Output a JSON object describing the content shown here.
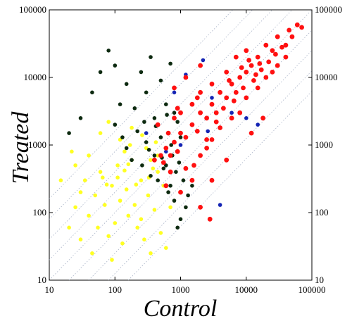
{
  "chart_data": {
    "type": "scatter",
    "xlabel": "Control",
    "ylabel": "Treated",
    "xscale": "log",
    "yscale": "log",
    "xlim": [
      10,
      100000
    ],
    "ylim": [
      10,
      100000
    ],
    "x_ticks": [
      "10",
      "100",
      "1000",
      "10000",
      "100000"
    ],
    "y_ticks": [
      "10",
      "100",
      "1000",
      "10000",
      "100000"
    ],
    "right_y_ticks": [
      "10",
      "100",
      "1000",
      "10000",
      "100000"
    ],
    "grid": false,
    "reference_lines": {
      "style": "dotted diagonal",
      "fold_ratios": [
        0.0625,
        0.125,
        0.25,
        0.5,
        2,
        4,
        8,
        16
      ],
      "color": "#aab4c8"
    },
    "colors": {
      "red": "#ff1010",
      "yellow": "#ffff22",
      "black": "#0d2a10",
      "blue": "#1424b4"
    },
    "series": [
      {
        "color": "#ffff22",
        "description_points": "low-expression cluster",
        "points": [
          [
            20,
            60
          ],
          [
            25,
            120
          ],
          [
            30,
            40
          ],
          [
            35,
            300
          ],
          [
            40,
            90
          ],
          [
            45,
            25
          ],
          [
            50,
            180
          ],
          [
            55,
            60
          ],
          [
            60,
            400
          ],
          [
            70,
            130
          ],
          [
            80,
            45
          ],
          [
            90,
            250
          ],
          [
            100,
            70
          ],
          [
            110,
            500
          ],
          [
            120,
            150
          ],
          [
            130,
            35
          ],
          [
            140,
            800
          ],
          [
            150,
            220
          ],
          [
            160,
            90
          ],
          [
            180,
            600
          ],
          [
            200,
            130
          ],
          [
            220,
            60
          ],
          [
            250,
            300
          ],
          [
            280,
            40
          ],
          [
            300,
            900
          ],
          [
            320,
            180
          ],
          [
            350,
            25
          ],
          [
            380,
            450
          ],
          [
            400,
            110
          ],
          [
            450,
            700
          ],
          [
            500,
            50
          ],
          [
            550,
            250
          ],
          [
            600,
            30
          ],
          [
            40,
            700
          ],
          [
            60,
            1500
          ],
          [
            80,
            2200
          ],
          [
            120,
            1200
          ],
          [
            180,
            1800
          ],
          [
            30,
            200
          ],
          [
            250,
            80
          ],
          [
            350,
            600
          ],
          [
            90,
            20
          ],
          [
            15,
            300
          ],
          [
            22,
            800
          ],
          [
            65,
            330
          ],
          [
            140,
            420
          ],
          [
            210,
            260
          ],
          [
            330,
            330
          ],
          [
            450,
            400
          ],
          [
            700,
            120
          ],
          [
            25,
            500
          ],
          [
            170,
            1000
          ],
          [
            260,
            1400
          ],
          [
            420,
            1100
          ],
          [
            600,
            900
          ],
          [
            75,
            260
          ],
          [
            110,
            330
          ],
          [
            160,
            520
          ]
        ]
      },
      {
        "color": "#0d2a10",
        "points": [
          [
            20,
            1500
          ],
          [
            30,
            2500
          ],
          [
            45,
            6000
          ],
          [
            60,
            12000
          ],
          [
            80,
            25000
          ],
          [
            100,
            15000
          ],
          [
            120,
            4000
          ],
          [
            150,
            8000
          ],
          [
            200,
            3500
          ],
          [
            250,
            12000
          ],
          [
            300,
            6000
          ],
          [
            350,
            20000
          ],
          [
            400,
            2500
          ],
          [
            500,
            9000
          ],
          [
            600,
            4000
          ],
          [
            700,
            16000
          ],
          [
            800,
            3000
          ],
          [
            150,
            900
          ],
          [
            220,
            1600
          ],
          [
            300,
            1100
          ],
          [
            400,
            700
          ],
          [
            500,
            1300
          ],
          [
            600,
            500
          ],
          [
            700,
            250
          ],
          [
            800,
            150
          ],
          [
            900,
            60
          ],
          [
            1000,
            80
          ],
          [
            1200,
            120
          ],
          [
            350,
            350
          ],
          [
            450,
            300
          ],
          [
            550,
            450
          ],
          [
            650,
            200
          ],
          [
            750,
            700
          ],
          [
            850,
            400
          ],
          [
            260,
            500
          ],
          [
            180,
            600
          ],
          [
            100,
            2000
          ],
          [
            130,
            1300
          ],
          [
            280,
            2200
          ],
          [
            330,
            850
          ],
          [
            420,
            1900
          ],
          [
            520,
            650
          ],
          [
            620,
            2800
          ],
          [
            720,
            1000
          ],
          [
            950,
            550
          ],
          [
            1100,
            300
          ],
          [
            1300,
            180
          ],
          [
            900,
            2200
          ],
          [
            1000,
            1300
          ],
          [
            1500,
            250
          ]
        ]
      },
      {
        "color": "#1424b4",
        "points": [
          [
            300,
            1500
          ],
          [
            600,
            800
          ],
          [
            1200,
            11000
          ],
          [
            2200,
            18000
          ],
          [
            3000,
            5000
          ],
          [
            4000,
            130
          ],
          [
            6000,
            3000
          ],
          [
            10000,
            2500
          ],
          [
            15000,
            2000
          ],
          [
            1000,
            1000
          ],
          [
            2600,
            1600
          ],
          [
            800,
            6000
          ]
        ]
      },
      {
        "color": "#ff1010",
        "description_points": "high-expression main diagonal band",
        "points": [
          [
            60000,
            60000
          ],
          [
            45000,
            50000
          ],
          [
            40000,
            30000
          ],
          [
            30000,
            40000
          ],
          [
            25000,
            25000
          ],
          [
            20000,
            30000
          ],
          [
            15000,
            20000
          ],
          [
            12000,
            15000
          ],
          [
            10000,
            12000
          ],
          [
            8000,
            10000
          ],
          [
            7000,
            6000
          ],
          [
            6000,
            8000
          ],
          [
            5000,
            5000
          ],
          [
            4000,
            6000
          ],
          [
            3500,
            3000
          ],
          [
            3000,
            4000
          ],
          [
            2500,
            2500
          ],
          [
            2000,
            3000
          ],
          [
            1800,
            1600
          ],
          [
            1500,
            2000
          ],
          [
            1200,
            1300
          ],
          [
            1000,
            1500
          ],
          [
            900,
            800
          ],
          [
            800,
            1100
          ],
          [
            700,
            700
          ],
          [
            600,
            900
          ],
          [
            550,
            550
          ],
          [
            500,
            700
          ],
          [
            20000,
            10000
          ],
          [
            30000,
            15000
          ],
          [
            10000,
            5000
          ],
          [
            8000,
            3000
          ],
          [
            15000,
            7000
          ],
          [
            6000,
            2500
          ],
          [
            4000,
            1800
          ],
          [
            3000,
            1200
          ],
          [
            2500,
            900
          ],
          [
            2000,
            700
          ],
          [
            1600,
            500
          ],
          [
            1200,
            450
          ],
          [
            5000,
            12000
          ],
          [
            3000,
            8000
          ],
          [
            2000,
            6000
          ],
          [
            1500,
            4000
          ],
          [
            1000,
            3000
          ],
          [
            800,
            2500
          ],
          [
            7000,
            20000
          ],
          [
            10000,
            25000
          ],
          [
            1500,
            300
          ],
          [
            3000,
            300
          ],
          [
            5000,
            600
          ],
          [
            12000,
            1500
          ],
          [
            18000,
            2500
          ],
          [
            800,
            7000
          ],
          [
            1200,
            10000
          ],
          [
            2000,
            15000
          ],
          [
            2500,
            1200
          ],
          [
            3500,
            2200
          ],
          [
            4500,
            3500
          ],
          [
            6500,
            4500
          ],
          [
            9000,
            7000
          ],
          [
            13000,
            9000
          ],
          [
            17000,
            13000
          ],
          [
            22000,
            17000
          ],
          [
            28000,
            22000
          ],
          [
            35000,
            28000
          ],
          [
            50000,
            40000
          ],
          [
            70000,
            55000
          ],
          [
            40000,
            20000
          ],
          [
            25000,
            12000
          ],
          [
            1000,
            200
          ],
          [
            700,
            400
          ],
          [
            400,
            600
          ],
          [
            450,
            2000
          ],
          [
            650,
            1500
          ],
          [
            2000,
            120
          ],
          [
            2800,
            80
          ],
          [
            600,
            250
          ],
          [
            900,
            3500
          ],
          [
            1800,
            5000
          ],
          [
            5500,
            9000
          ],
          [
            8500,
            14000
          ],
          [
            11000,
            18000
          ],
          [
            14000,
            11000
          ],
          [
            16000,
            16000
          ]
        ]
      }
    ]
  }
}
